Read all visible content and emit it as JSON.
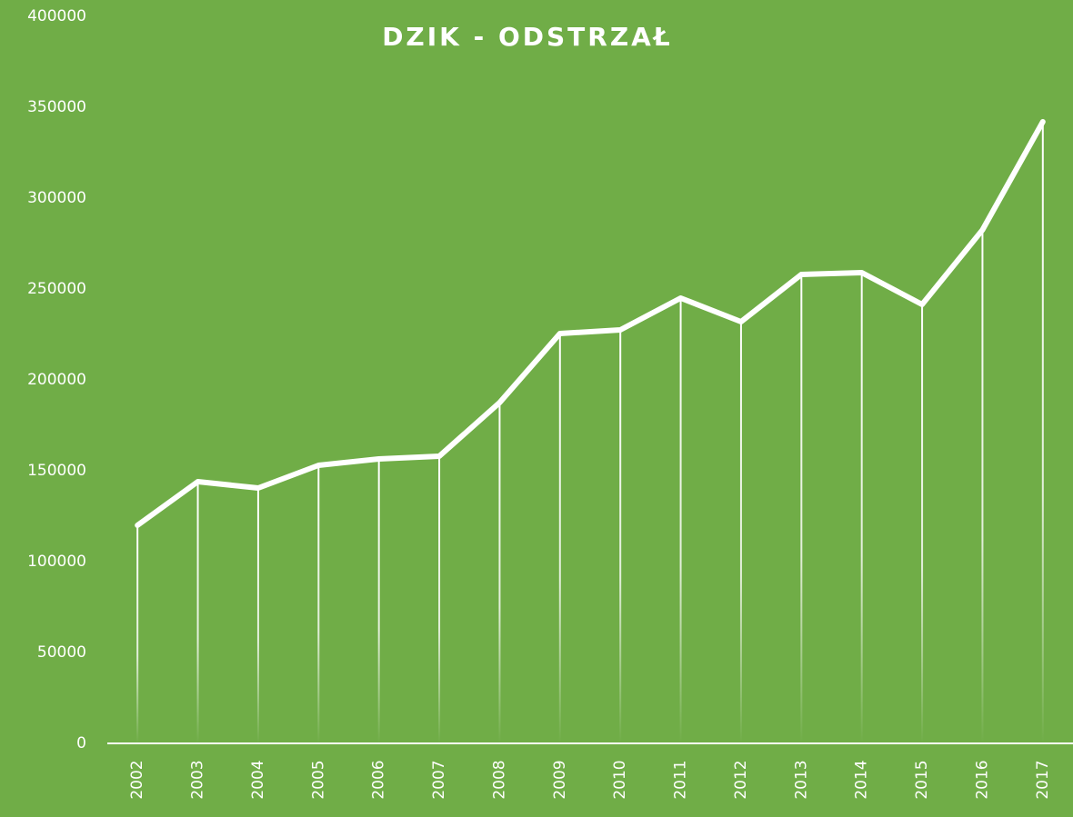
{
  "chart_data": {
    "type": "line",
    "title": "DZIK - ODSTRZAŁ",
    "categories": [
      "2002",
      "2003",
      "2004",
      "2005",
      "2006",
      "2007",
      "2008",
      "2009",
      "2010",
      "2011",
      "2012",
      "2013",
      "2014",
      "2015",
      "2016",
      "2017"
    ],
    "series": [
      {
        "name": "Odstrzał",
        "color": "#ffffff",
        "values": [
          120000,
          144000,
          140500,
          153000,
          156500,
          158000,
          187500,
          225500,
          227500,
          245000,
          232000,
          258000,
          259000,
          241500,
          282500,
          342000
        ]
      }
    ],
    "ylim": [
      0,
      400000
    ],
    "yticks": [
      0,
      50000,
      100000,
      150000,
      200000,
      250000,
      300000,
      350000,
      400000
    ],
    "drop_lines": true
  }
}
